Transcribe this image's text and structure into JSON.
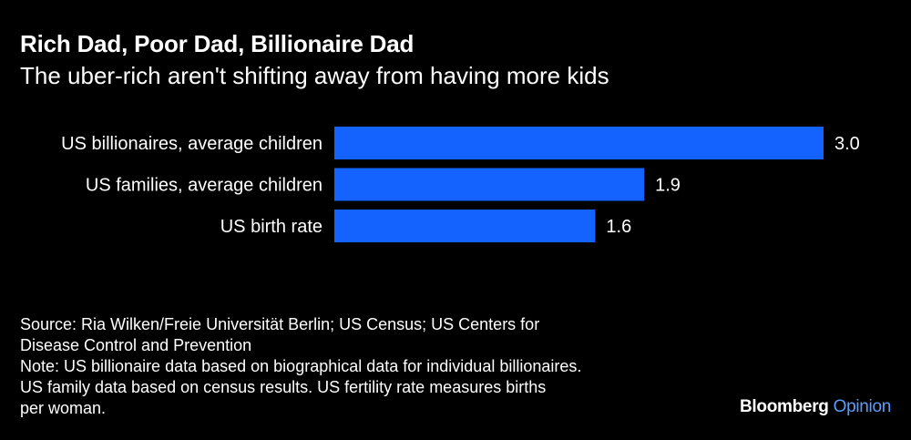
{
  "header": {
    "title": "Rich Dad, Poor Dad, Billionaire Dad",
    "subtitle": "The uber-rich aren't shifting away from having more kids"
  },
  "chart_data": {
    "type": "bar",
    "orientation": "horizontal",
    "categories": [
      "US billionaires, average children",
      "US families, average children",
      "US birth rate"
    ],
    "values": [
      3.0,
      1.9,
      1.6
    ],
    "value_labels": [
      "3.0",
      "1.9",
      "1.6"
    ],
    "title": "Rich Dad, Poor Dad, Billionaire Dad",
    "subtitle": "The uber-rich aren't shifting away from having more kids",
    "xlabel": "",
    "ylabel": "",
    "xlim": [
      0,
      3.0
    ],
    "grid": false,
    "legend": "none",
    "bar_color": "#1463FF"
  },
  "footer": {
    "source_line1": "Source: Ria Wilken/Freie Universität Berlin; US Census; US Centers for",
    "source_line2": "Disease Control and Prevention",
    "note_line1": "Note: US billionaire data based on biographical data for individual billionaires.",
    "note_line2": "US family data based on census results. US fertility rate measures births",
    "note_line3": "per woman."
  },
  "brand": {
    "name": "Bloomberg",
    "section": "Opinion",
    "name_color": "#ffffff",
    "section_color": "#5B9BFF"
  }
}
